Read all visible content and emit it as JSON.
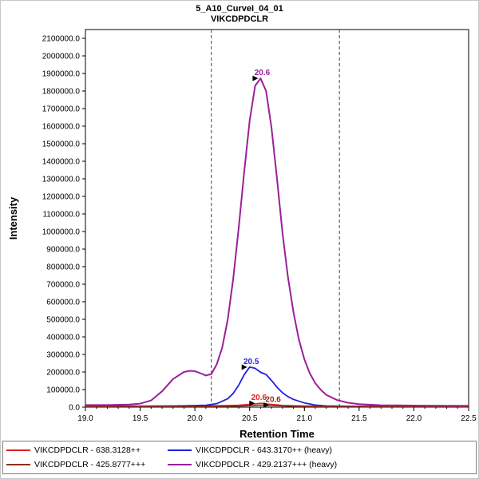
{
  "chart_data": {
    "type": "line",
    "title": "5_A10_CurveI_04_01",
    "subtitle": "VIKCDPDCLR",
    "xlabel": "Retention Time",
    "ylabel": "Intensity",
    "xlim": [
      19.0,
      22.5
    ],
    "ylim": [
      0,
      2150000
    ],
    "grid": false,
    "legend_position": "bottom",
    "xticks": [
      19.0,
      19.5,
      20.0,
      20.5,
      21.0,
      21.5,
      22.0,
      22.5
    ],
    "yticks": [
      0,
      100000,
      200000,
      300000,
      400000,
      500000,
      600000,
      700000,
      800000,
      900000,
      1000000,
      1100000,
      1200000,
      1300000,
      1400000,
      1500000,
      1600000,
      1700000,
      1800000,
      1900000,
      2000000,
      2100000
    ],
    "boundaries": [
      20.15,
      21.32
    ],
    "series": [
      {
        "id": "precursor-light",
        "name": "VIKCDPDCLR - 638.3128++",
        "color": "#e02121",
        "width": 1.6,
        "points": [
          [
            19.0,
            6000
          ],
          [
            19.5,
            6000
          ],
          [
            20.0,
            7000
          ],
          [
            20.2,
            8000
          ],
          [
            20.4,
            11000
          ],
          [
            20.5,
            16000
          ],
          [
            20.6,
            22000
          ],
          [
            20.7,
            16000
          ],
          [
            20.8,
            10000
          ],
          [
            21.0,
            7000
          ],
          [
            21.5,
            5000
          ],
          [
            22.0,
            5000
          ],
          [
            22.5,
            5000
          ]
        ]
      },
      {
        "id": "precursor-heavy",
        "name": "VIKCDPDCLR - 643.3170++ (heavy)",
        "color": "#2121dd",
        "width": 1.8,
        "points": [
          [
            19.0,
            5000
          ],
          [
            19.5,
            5000
          ],
          [
            19.8,
            7000
          ],
          [
            20.0,
            9000
          ],
          [
            20.1,
            11000
          ],
          [
            20.2,
            20000
          ],
          [
            20.3,
            48000
          ],
          [
            20.35,
            78000
          ],
          [
            20.4,
            125000
          ],
          [
            20.45,
            185000
          ],
          [
            20.5,
            228000
          ],
          [
            20.55,
            221000
          ],
          [
            20.6,
            198000
          ],
          [
            20.65,
            186000
          ],
          [
            20.7,
            152000
          ],
          [
            20.75,
            113000
          ],
          [
            20.8,
            82000
          ],
          [
            20.85,
            60000
          ],
          [
            20.9,
            44000
          ],
          [
            21.0,
            24000
          ],
          [
            21.1,
            12000
          ],
          [
            21.2,
            7000
          ],
          [
            21.4,
            5000
          ],
          [
            22.0,
            4000
          ],
          [
            22.5,
            4000
          ]
        ]
      },
      {
        "id": "triple-light",
        "name": "VIKCDPDCLR - 425.8777+++",
        "color": "#8b2f16",
        "width": 1.6,
        "points": [
          [
            19.0,
            3000
          ],
          [
            19.5,
            3000
          ],
          [
            20.0,
            4000
          ],
          [
            20.3,
            5000
          ],
          [
            20.5,
            8000
          ],
          [
            20.6,
            12000
          ],
          [
            20.7,
            9000
          ],
          [
            20.9,
            5000
          ],
          [
            21.2,
            3000
          ],
          [
            22.0,
            3000
          ],
          [
            22.5,
            3000
          ]
        ]
      },
      {
        "id": "triple-heavy",
        "name": "VIKCDPDCLR - 429.2137+++ (heavy)",
        "color": "#9b1f9b",
        "width": 2,
        "points": [
          [
            19.0,
            12000
          ],
          [
            19.2,
            12000
          ],
          [
            19.4,
            15000
          ],
          [
            19.5,
            20000
          ],
          [
            19.6,
            38000
          ],
          [
            19.7,
            90000
          ],
          [
            19.8,
            160000
          ],
          [
            19.9,
            200000
          ],
          [
            19.95,
            207000
          ],
          [
            20.0,
            205000
          ],
          [
            20.05,
            193000
          ],
          [
            20.1,
            180000
          ],
          [
            20.15,
            188000
          ],
          [
            20.2,
            245000
          ],
          [
            20.25,
            340000
          ],
          [
            20.3,
            500000
          ],
          [
            20.35,
            730000
          ],
          [
            20.4,
            1020000
          ],
          [
            20.45,
            1340000
          ],
          [
            20.5,
            1630000
          ],
          [
            20.55,
            1830000
          ],
          [
            20.6,
            1872000
          ],
          [
            20.65,
            1800000
          ],
          [
            20.7,
            1590000
          ],
          [
            20.75,
            1300000
          ],
          [
            20.8,
            990000
          ],
          [
            20.85,
            740000
          ],
          [
            20.9,
            540000
          ],
          [
            20.95,
            385000
          ],
          [
            21.0,
            272000
          ],
          [
            21.05,
            192000
          ],
          [
            21.1,
            136000
          ],
          [
            21.15,
            98000
          ],
          [
            21.2,
            70000
          ],
          [
            21.3,
            40000
          ],
          [
            21.4,
            25000
          ],
          [
            21.5,
            17000
          ],
          [
            21.7,
            11000
          ],
          [
            22.0,
            9000
          ],
          [
            22.3,
            8000
          ],
          [
            22.5,
            8000
          ]
        ]
      }
    ],
    "annotations": [
      {
        "series": 3,
        "x": 20.6,
        "y": 1872000,
        "label": "20.6"
      },
      {
        "series": 1,
        "x": 20.5,
        "y": 228000,
        "label": "20.5"
      },
      {
        "series": 0,
        "x": 20.57,
        "y": 22000,
        "label": "20.6"
      },
      {
        "series": 2,
        "x": 20.7,
        "y": 12000,
        "label": "20.6"
      }
    ]
  }
}
